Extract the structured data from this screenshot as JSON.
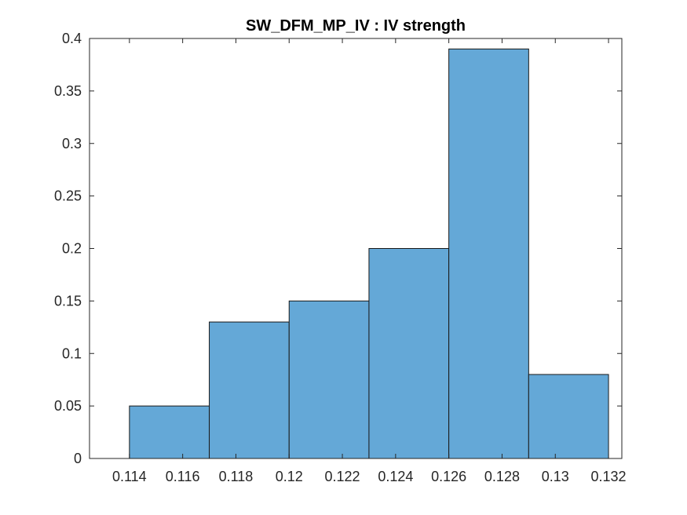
{
  "chart_data": {
    "type": "bar",
    "title": "SW_DFM_MP_IV : IV strength",
    "xlabel": "",
    "ylabel": "",
    "bins": [
      {
        "x0": 0.114,
        "x1": 0.117,
        "value": 0.05
      },
      {
        "x0": 0.117,
        "x1": 0.12,
        "value": 0.13
      },
      {
        "x0": 0.12,
        "x1": 0.123,
        "value": 0.15
      },
      {
        "x0": 0.123,
        "x1": 0.126,
        "value": 0.2
      },
      {
        "x0": 0.126,
        "x1": 0.129,
        "value": 0.39
      },
      {
        "x0": 0.129,
        "x1": 0.132,
        "value": 0.08
      }
    ],
    "xlim": [
      0.1125,
      0.1325
    ],
    "ylim": [
      0,
      0.4
    ],
    "xticks": [
      0.114,
      0.116,
      0.118,
      0.12,
      0.122,
      0.124,
      0.126,
      0.128,
      0.13,
      0.132
    ],
    "xtick_labels": [
      "0.114",
      "0.116",
      "0.118",
      "0.12",
      "0.122",
      "0.124",
      "0.126",
      "0.128",
      "0.13",
      "0.132"
    ],
    "yticks": [
      0,
      0.05,
      0.1,
      0.15,
      0.2,
      0.25,
      0.3,
      0.35,
      0.4
    ],
    "ytick_labels": [
      "0",
      "0.05",
      "0.1",
      "0.15",
      "0.2",
      "0.25",
      "0.3",
      "0.35",
      "0.4"
    ],
    "grid": false,
    "legend": "none",
    "colors": {
      "bar_fill": "#64a8d7",
      "bar_edge": "#1a1a1a",
      "axis": "#262626"
    }
  }
}
